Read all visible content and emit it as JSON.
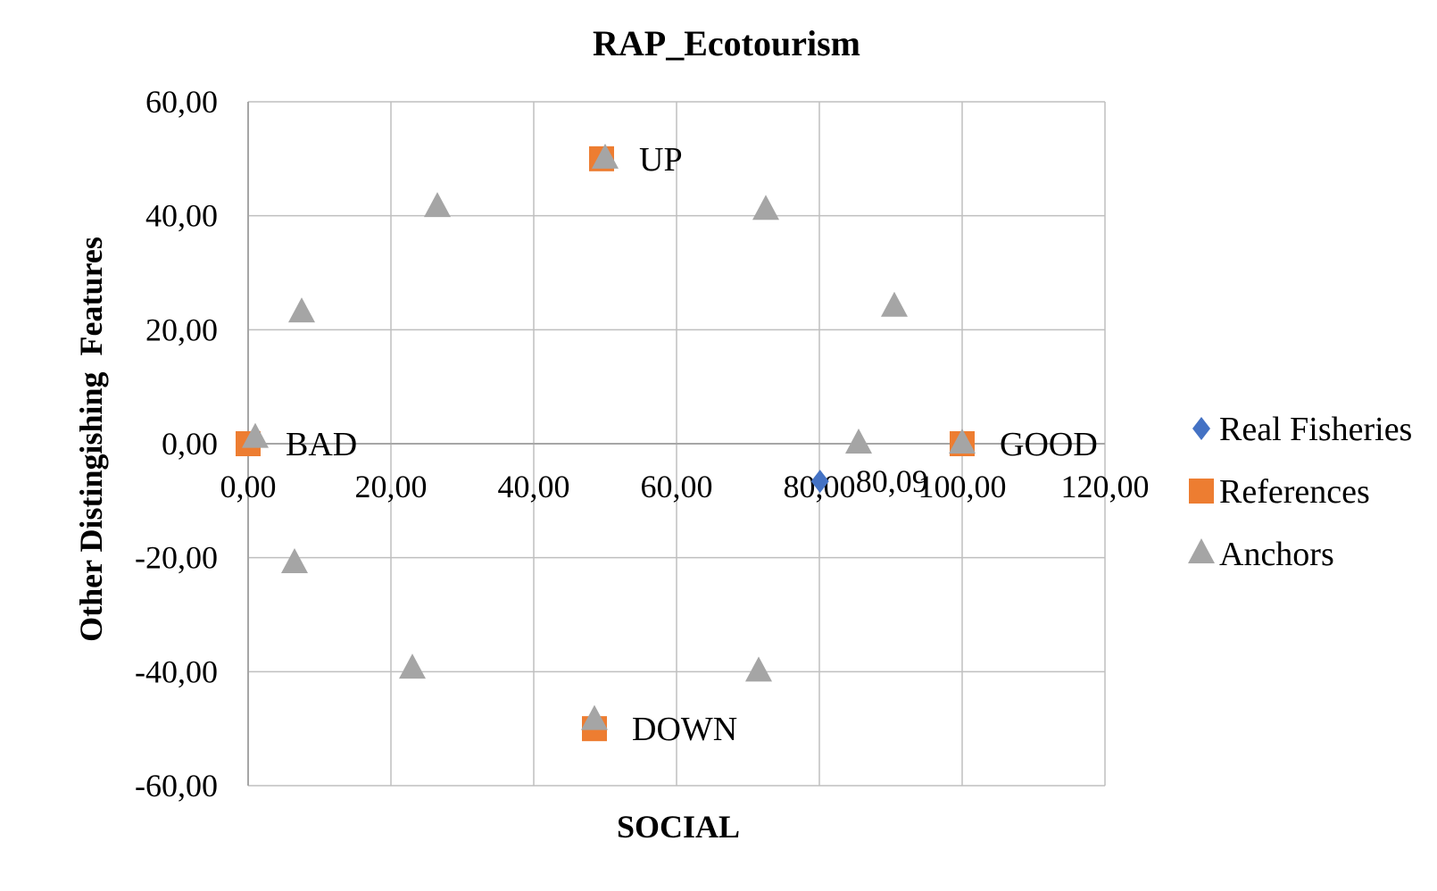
{
  "chart_data": {
    "type": "scatter",
    "title": "RAP_Ecotourism",
    "xlabel": "SOCIAL",
    "ylabel": "Other Distingishing  Features",
    "xlim": [
      0,
      120
    ],
    "ylim": [
      -60,
      60
    ],
    "x_ticks": [
      "0,00",
      "20,00",
      "40,00",
      "60,00",
      "80,00",
      "100,00",
      "120,00"
    ],
    "y_ticks": [
      "60,00",
      "40,00",
      "20,00",
      "0,00",
      "-20,00",
      "-40,00",
      "-60,00"
    ],
    "grid": true,
    "legend_position": "right",
    "series": [
      {
        "name": "Real Fisheries",
        "marker": "diamond",
        "color": "#4472C4",
        "points": [
          {
            "x": 80.09,
            "y": -6.6,
            "label": "80,09"
          }
        ]
      },
      {
        "name": "References",
        "marker": "square",
        "color": "#ED7D31",
        "points": [
          {
            "x": 0,
            "y": 0,
            "label": "BAD"
          },
          {
            "x": 100,
            "y": 0,
            "label": "GOOD"
          },
          {
            "x": 49.5,
            "y": 50,
            "label": "UP"
          },
          {
            "x": 48.5,
            "y": -50,
            "label": "DOWN"
          }
        ]
      },
      {
        "name": "Anchors",
        "marker": "triangle",
        "color": "#A5A5A5",
        "points": [
          {
            "x": 1,
            "y": 1
          },
          {
            "x": 7.5,
            "y": 23
          },
          {
            "x": 26.5,
            "y": 41.5
          },
          {
            "x": 50,
            "y": 50
          },
          {
            "x": 72.5,
            "y": 41
          },
          {
            "x": 90.5,
            "y": 24
          },
          {
            "x": 85.5,
            "y": 0
          },
          {
            "x": 100,
            "y": 0
          },
          {
            "x": 6.5,
            "y": -21
          },
          {
            "x": 23,
            "y": -39.5
          },
          {
            "x": 48.5,
            "y": -48.5
          },
          {
            "x": 71.5,
            "y": -40
          }
        ]
      }
    ]
  }
}
